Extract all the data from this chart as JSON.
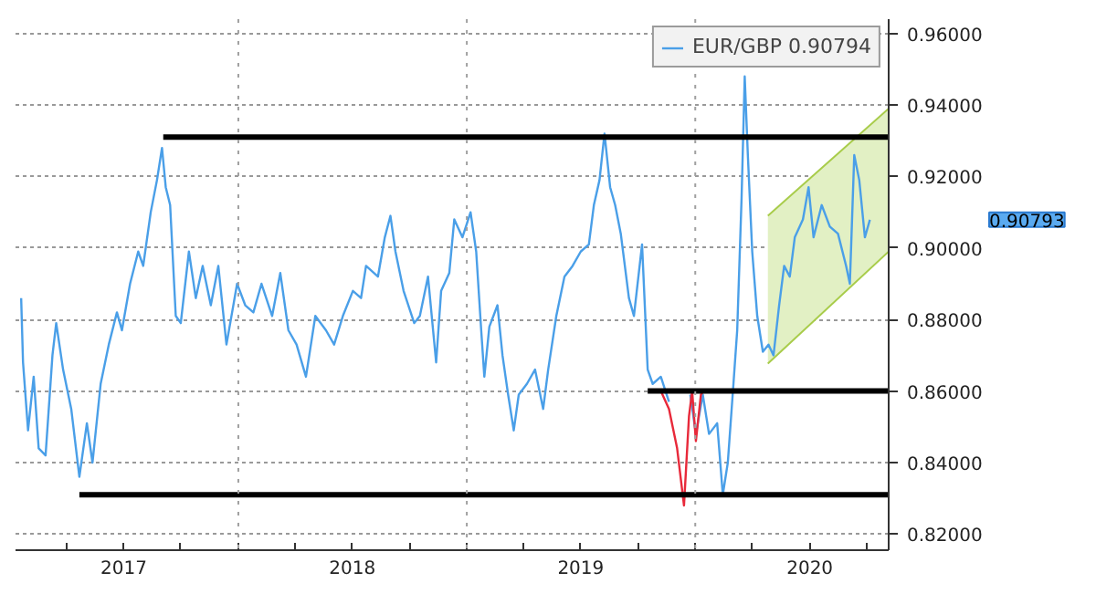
{
  "chart_data": {
    "type": "line",
    "xlim": [
      "2017-01-10",
      "2020-11-05"
    ],
    "ylim": [
      0.8155,
      0.964
    ],
    "yticks": [
      {
        "value": 0.82,
        "label": "0.82000"
      },
      {
        "value": 0.84,
        "label": "0.84000"
      },
      {
        "value": 0.86,
        "label": "0.86000"
      },
      {
        "value": 0.88,
        "label": "0.88000"
      },
      {
        "value": 0.9,
        "label": "0.90000"
      },
      {
        "value": 0.92,
        "label": "0.92000"
      },
      {
        "value": 0.94,
        "label": "0.94000"
      },
      {
        "value": 0.96,
        "label": "0.96000"
      }
    ],
    "xticks": [
      {
        "value": "2017-04-01",
        "label": null
      },
      {
        "value": "2017-07-02",
        "label": "2017"
      },
      {
        "value": "2017-10-01",
        "label": null
      },
      {
        "value": "2018-01-01",
        "label": null
      },
      {
        "value": "2018-04-01",
        "label": null
      },
      {
        "value": "2018-07-02",
        "label": "2018"
      },
      {
        "value": "2018-10-01",
        "label": null
      },
      {
        "value": "2019-01-01",
        "label": null
      },
      {
        "value": "2019-04-01",
        "label": null
      },
      {
        "value": "2019-07-02",
        "label": "2019"
      },
      {
        "value": "2019-10-01",
        "label": null
      },
      {
        "value": "2020-01-01",
        "label": null
      },
      {
        "value": "2020-04-01",
        "label": null
      },
      {
        "value": "2020-07-02",
        "label": "2020"
      },
      {
        "value": "2020-10-01",
        "label": null
      }
    ],
    "ref_lines": [
      {
        "axis": "x",
        "value": "2018-01-01",
        "label": null,
        "color": "#a0a0a0",
        "line_style": "dotted"
      },
      {
        "axis": "x",
        "value": "2019-01-01",
        "label": null,
        "color": "#a0a0a0",
        "line_style": "dotted"
      },
      {
        "axis": "x",
        "value": "2020-01-01",
        "label": null,
        "color": "#a0a0a0",
        "line_style": "dotted"
      }
    ],
    "grid": "y",
    "legend": "top right",
    "line_style": "solid",
    "annotations": [
      "0.90793"
    ],
    "series": [
      {
        "type": "line",
        "color": "#e2f0c4",
        "x": [
          "2020-04-26",
          "2020-11-05"
        ],
        "values": [
          null,
          null
        ],
        "lower": [
          0.8677,
          0.899
        ],
        "upper": [
          0.909,
          0.939
        ]
      },
      {
        "type": "line",
        "color": "#a8cc4a",
        "x": [
          "2020-04-26",
          "2020-11-05"
        ],
        "values": [
          0.8677,
          0.899
        ]
      },
      {
        "type": "line",
        "color": "#a8cc4a",
        "x": [
          "2020-04-26",
          "2020-11-05"
        ],
        "values": [
          0.909,
          0.939
        ]
      },
      {
        "name": "EUR/GBP 0.90794",
        "color": "#4a9fe8",
        "x": [
          "2017-01-19",
          "2017-01-22",
          "2017-01-30",
          "2017-02-08",
          "2017-02-16",
          "2017-02-27",
          "2017-03-10",
          "2017-03-16",
          "2017-03-27",
          "2017-04-09",
          "2017-04-22",
          "2017-05-04",
          "2017-05-13",
          "2017-05-26",
          "2017-06-08",
          "2017-06-21",
          "2017-06-29",
          "2017-07-12",
          "2017-07-25",
          "2017-08-02",
          "2017-08-14",
          "2017-08-24",
          "2017-09-01",
          "2017-09-07",
          "2017-09-14",
          "2017-09-23",
          "2017-10-01",
          "2017-10-14",
          "2017-10-25",
          "2017-11-05",
          "2017-11-18",
          "2017-11-30",
          "2017-12-13",
          "2017-12-30",
          "2018-01-12",
          "2018-01-25",
          "2018-02-07",
          "2018-02-24",
          "2018-03-09",
          "2018-03-22",
          "2018-04-04",
          "2018-04-19",
          "2018-05-04",
          "2018-05-21",
          "2018-06-03",
          "2018-06-17",
          "2018-07-03",
          "2018-07-16",
          "2018-07-24",
          "2018-08-12",
          "2018-08-23",
          "2018-09-01",
          "2018-09-09",
          "2018-09-22",
          "2018-10-09",
          "2018-10-18",
          "2018-10-31",
          "2018-11-13",
          "2018-11-21",
          "2018-12-04",
          "2018-12-12",
          "2018-12-25",
          "2019-01-07",
          "2019-01-16",
          "2019-01-24",
          "2019-01-29",
          "2019-02-06",
          "2019-02-19",
          "2019-02-27",
          "2019-03-08",
          "2019-03-17",
          "2019-03-25",
          "2019-04-07",
          "2019-04-20",
          "2019-05-03",
          "2019-05-11",
          "2019-05-24",
          "2019-06-06",
          "2019-06-19",
          "2019-07-02",
          "2019-07-15",
          "2019-07-23",
          "2019-08-01",
          "2019-08-09",
          "2019-08-18",
          "2019-08-26",
          "2019-09-04",
          "2019-09-17",
          "2019-09-25",
          "2019-10-08",
          "2019-10-17",
          "2019-10-25",
          "2019-11-07",
          "2019-11-20",
          "2019-12-03",
          "2019-12-13",
          "2019-12-24",
          "2020-01-02",
          "2020-01-13",
          "2020-01-23",
          "2020-02-05",
          "2020-02-14",
          "2020-02-22",
          "2020-03-02",
          "2020-03-08",
          "2020-03-15",
          "2020-03-19",
          "2020-03-20",
          "2020-03-25",
          "2020-04-01",
          "2020-04-09",
          "2020-04-18",
          "2020-04-27",
          "2020-05-05",
          "2020-05-14",
          "2020-05-22",
          "2020-05-31",
          "2020-06-08",
          "2020-06-21",
          "2020-06-30",
          "2020-07-08",
          "2020-07-21",
          "2020-08-03",
          "2020-08-16",
          "2020-08-29",
          "2020-09-04",
          "2020-09-11",
          "2020-09-19",
          "2020-09-28",
          "2020-10-06"
        ],
        "values": [
          0.886,
          0.868,
          0.849,
          0.864,
          0.844,
          0.842,
          0.87,
          0.879,
          0.866,
          0.855,
          0.836,
          0.851,
          0.84,
          0.862,
          0.873,
          0.882,
          0.877,
          0.89,
          0.899,
          0.895,
          0.91,
          0.919,
          0.928,
          0.917,
          0.912,
          0.881,
          0.879,
          0.899,
          0.886,
          0.895,
          0.884,
          0.895,
          0.873,
          0.89,
          0.884,
          0.882,
          0.89,
          0.881,
          0.893,
          0.877,
          0.873,
          0.864,
          0.881,
          0.877,
          0.873,
          0.881,
          0.888,
          0.886,
          0.895,
          0.892,
          0.903,
          0.909,
          0.899,
          0.888,
          0.879,
          0.881,
          0.892,
          0.868,
          0.888,
          0.893,
          0.908,
          0.903,
          0.91,
          0.899,
          0.877,
          0.864,
          0.878,
          0.884,
          0.87,
          0.859,
          0.849,
          0.859,
          0.862,
          0.866,
          0.855,
          0.866,
          0.881,
          0.892,
          0.895,
          0.899,
          0.901,
          0.912,
          0.919,
          0.932,
          0.917,
          0.912,
          0.904,
          0.886,
          0.881,
          0.901,
          0.866,
          0.862,
          0.864,
          0.857,
          null,
          null,
          0.859,
          0.848,
          0.859,
          0.848,
          0.851,
          0.831,
          0.84,
          0.862,
          0.877,
          0.914,
          0.941,
          0.948,
          0.926,
          0.899,
          0.881,
          0.871,
          0.873,
          0.87,
          0.884,
          0.895,
          0.892,
          0.903,
          0.908,
          0.917,
          0.903,
          0.912,
          0.906,
          0.904,
          0.895,
          0.89,
          0.926,
          0.919,
          0.903,
          0.9079
        ]
      },
      {
        "color": "#e8293a",
        "x": [
          "2019-11-07",
          "2019-11-20",
          "2019-12-03",
          "2019-12-14",
          "2019-12-22",
          "2019-12-27",
          "2020-01-02",
          "2020-01-10",
          "2020-01-14"
        ],
        "values": [
          0.86,
          0.855,
          0.844,
          0.828,
          0.853,
          0.86,
          0.846,
          0.859,
          0.86
        ]
      },
      {
        "color": "#000000",
        "x": [
          "2017-09-03",
          "2020-11-05"
        ],
        "values": [
          0.931,
          0.931
        ]
      },
      {
        "color": "#000000",
        "x": [
          "2017-04-22",
          "2020-11-05"
        ],
        "values": [
          0.831,
          0.831
        ]
      },
      {
        "color": "#000000",
        "x": [
          "2019-10-17",
          "2020-11-05"
        ],
        "values": [
          0.86,
          0.86
        ]
      }
    ]
  }
}
